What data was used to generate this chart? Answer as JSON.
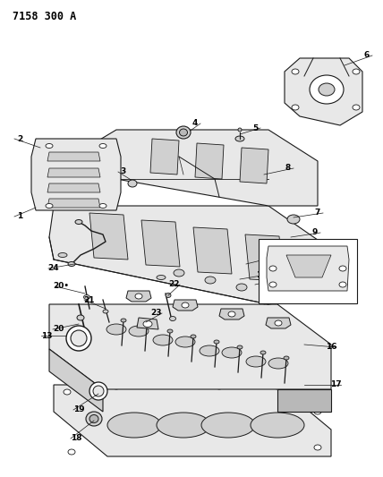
{
  "title": "7158 300 A",
  "bg_color": "#ffffff",
  "line_color": "#1a1a1a",
  "text_color": "#000000",
  "title_fontsize": 8.5,
  "label_fontsize": 6.5,
  "fig_width": 4.28,
  "fig_height": 5.33,
  "dpi": 100
}
